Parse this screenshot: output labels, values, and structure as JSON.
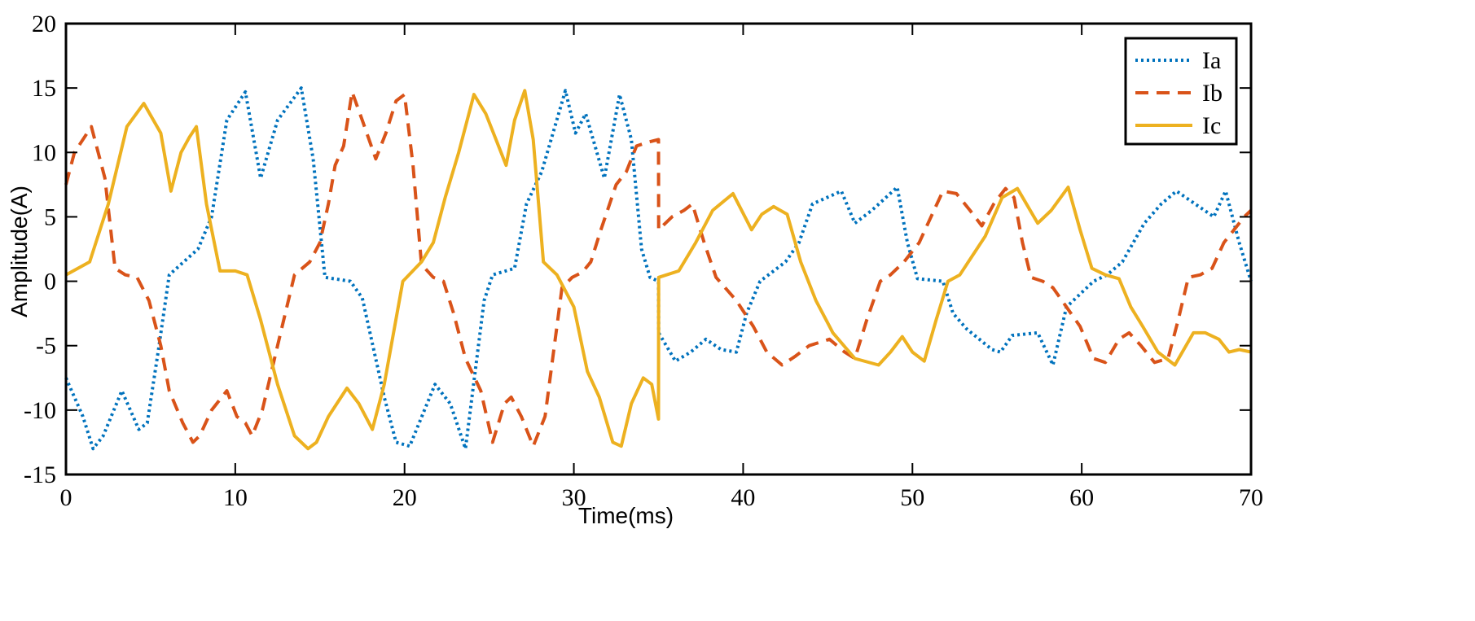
{
  "chart_data": {
    "type": "line",
    "title": "",
    "xlabel": "Time(ms)",
    "ylabel": "Amplitude(A)",
    "xlim": [
      0,
      70
    ],
    "ylim": [
      -15,
      20
    ],
    "xticks": [
      0,
      10,
      20,
      30,
      40,
      50,
      60,
      70
    ],
    "yticks": [
      -15,
      -10,
      -5,
      0,
      5,
      10,
      15,
      20
    ],
    "xtick_labels": [
      "0",
      "10",
      "20",
      "30",
      "40",
      "50",
      "60",
      "70"
    ],
    "ytick_labels": [
      "-15",
      "-10",
      "-5",
      "0",
      "5",
      "10",
      "15",
      "20"
    ],
    "grid": false,
    "legend_position": "top-right",
    "series": [
      {
        "name": "Ia",
        "color": "#0072BD",
        "style": "dotted",
        "x": [
          0,
          1,
          1.6,
          2.2,
          3.3,
          4.3,
          4.8,
          5.5,
          6.1,
          7.8,
          8.6,
          9.5,
          10.6,
          11.5,
          12.5,
          13.9,
          14.6,
          15.3,
          16.8,
          17.5,
          18.8,
          19.5,
          20.3,
          21.8,
          22.7,
          23.6,
          24.7,
          25.2,
          26.5,
          27.2,
          28.1,
          29.5,
          30.1,
          30.7,
          31.8,
          32.7,
          33.4,
          34,
          34.5,
          35,
          35.01,
          36,
          36.9,
          37.8,
          38.7,
          39.6,
          40.2,
          41,
          42.5,
          43.3,
          44.1,
          45.8,
          46.6,
          47.6,
          49.1,
          49.7,
          50.3,
          51.8,
          52.4,
          53.2,
          54.7,
          55.2,
          55.9,
          57.4,
          58.3,
          59.1,
          60.7,
          61.5,
          62.4,
          63.7,
          64.7,
          65.6,
          67.8,
          68.5,
          69.3,
          70
        ],
        "y": [
          -7.5,
          -10.5,
          -13,
          -12,
          -8.5,
          -11.5,
          -11,
          -5,
          0.5,
          2.5,
          5,
          12.5,
          14.7,
          8,
          12.5,
          15,
          9.5,
          0.3,
          0,
          -1.3,
          -9,
          -12.5,
          -12.8,
          -8,
          -9.5,
          -13,
          -1.5,
          0.5,
          1,
          6,
          8.5,
          14.8,
          11.5,
          13,
          8,
          14.5,
          11,
          2.5,
          0.3,
          0,
          -4,
          -6.2,
          -5.5,
          -4.5,
          -5.3,
          -5.5,
          -2.5,
          0,
          1.5,
          3,
          6,
          7,
          4.5,
          5.5,
          7.3,
          3,
          0.2,
          0,
          -2.5,
          -3.7,
          -5.3,
          -5.5,
          -4.2,
          -4,
          -6.5,
          -2,
          0,
          0.5,
          1.5,
          4.5,
          6,
          7,
          5,
          7,
          3,
          0
        ]
      },
      {
        "name": "Ib",
        "color": "#D95319",
        "style": "dashed",
        "x": [
          0,
          0.5,
          1.5,
          2.3,
          2.9,
          3.5,
          4.2,
          4.9,
          5.6,
          6.1,
          6.9,
          7.5,
          7.9,
          8.6,
          9.5,
          10.1,
          10.6,
          11,
          11.6,
          12.5,
          13.5,
          14.4,
          15,
          15.5,
          15.9,
          16.4,
          16.9,
          17.5,
          18.3,
          18.9,
          19.5,
          20,
          20.5,
          21,
          21.7,
          22.3,
          22.9,
          23.6,
          24.5,
          25.2,
          25.9,
          26.3,
          26.9,
          27.6,
          28.3,
          28.9,
          29.3,
          29.9,
          30.5,
          31,
          31.6,
          32.5,
          33.1,
          33.7,
          34.4,
          35,
          35.01,
          35.8,
          36.5,
          37,
          37.7,
          38.4,
          39.6,
          40.6,
          41.4,
          42.3,
          43.1,
          43.9,
          45.1,
          46,
          46.6,
          47.3,
          48.1,
          48.7,
          49.5,
          50.4,
          51.1,
          51.8,
          52.6,
          53.4,
          54.1,
          54.8,
          55.5,
          56,
          56.5,
          57,
          57.7,
          58.3,
          59.1,
          59.9,
          60.7,
          61.4,
          62.2,
          62.8,
          63.5,
          64.3,
          65.1,
          65.7,
          66.3,
          67,
          67.7,
          68.4,
          69,
          69.6,
          70
        ],
        "y": [
          7.5,
          10,
          12,
          8,
          1,
          0.5,
          0.3,
          -1.5,
          -5,
          -8.5,
          -11,
          -12.5,
          -12,
          -10,
          -8.5,
          -10.5,
          -11,
          -12,
          -10,
          -5,
          0.5,
          1.5,
          3,
          6,
          9,
          10.5,
          14.7,
          12.5,
          9.5,
          11.5,
          14,
          14.5,
          9,
          1.3,
          0.3,
          0,
          -2.5,
          -6,
          -8.5,
          -12.5,
          -9.5,
          -9,
          -10.5,
          -12.8,
          -10.5,
          -4.5,
          -0.5,
          0.3,
          0.7,
          1.5,
          4,
          7.5,
          8.5,
          10.5,
          10.8,
          11,
          4,
          5,
          5.5,
          6,
          3,
          0.3,
          -1.5,
          -3.5,
          -5.5,
          -6.5,
          -5.8,
          -5,
          -4.5,
          -5.5,
          -6,
          -3,
          0,
          0.5,
          1.5,
          3,
          5,
          7,
          6.8,
          5.5,
          4.3,
          6,
          7.2,
          6.5,
          3,
          0.3,
          0,
          -0.5,
          -2,
          -3.5,
          -6,
          -6.3,
          -4.5,
          -4,
          -5,
          -6.3,
          -6,
          -3,
          0.3,
          0.5,
          1,
          3,
          4,
          5,
          5.5
        ]
      },
      {
        "name": "Ic",
        "color": "#EDB120",
        "style": "solid",
        "x": [
          0,
          1.4,
          2.5,
          3.6,
          4.6,
          5.6,
          6.2,
          6.8,
          7.3,
          7.7,
          8.3,
          9.1,
          10,
          10.7,
          11.5,
          12.5,
          13.5,
          14.3,
          14.8,
          15.5,
          16,
          16.6,
          17.3,
          18.1,
          18.8,
          19.9,
          21,
          21.7,
          22.4,
          23.2,
          24.1,
          24.8,
          25.4,
          26,
          26.5,
          27.1,
          27.6,
          28.2,
          29,
          30,
          30.8,
          31.5,
          32.3,
          32.8,
          33.4,
          34.1,
          34.6,
          35,
          35.01,
          36.2,
          37.2,
          38.2,
          39.4,
          40.5,
          41.1,
          41.8,
          42.6,
          43.4,
          44.3,
          45.3,
          46.6,
          48,
          48.7,
          49.4,
          50,
          50.7,
          51.4,
          52.1,
          52.8,
          53.3,
          54.3,
          55.3,
          56.2,
          57.4,
          58.2,
          59.2,
          59.9,
          60.6,
          61.4,
          62.2,
          62.9,
          63.6,
          64.5,
          65.5,
          66.6,
          67.3,
          68.1,
          68.7,
          69.3,
          70
        ],
        "y": [
          0.5,
          1.5,
          6,
          12,
          13.8,
          11.5,
          7,
          10,
          11.2,
          12,
          6,
          0.8,
          0.8,
          0.5,
          -3,
          -8,
          -12,
          -13,
          -12.5,
          -10.5,
          -9.5,
          -8.3,
          -9.5,
          -11.5,
          -8,
          0,
          1.5,
          3,
          6.5,
          10,
          14.5,
          13,
          11,
          9,
          12.5,
          14.8,
          11,
          1.5,
          0.5,
          -2,
          -7,
          -9,
          -12.5,
          -12.8,
          -9.5,
          -7.5,
          -8,
          -10.7,
          0.3,
          0.8,
          3,
          5.5,
          6.8,
          4,
          5.2,
          5.8,
          5.2,
          1.5,
          -1.5,
          -4,
          -6,
          -6.5,
          -5.5,
          -4.3,
          -5.5,
          -6.2,
          -3,
          0,
          0.5,
          1.5,
          3.5,
          6.5,
          7.2,
          4.5,
          5.5,
          7.3,
          4,
          1,
          0.5,
          0.2,
          -2,
          -3.5,
          -5.5,
          -6.5,
          -4,
          -4,
          -4.5,
          -5.5,
          -5.3,
          -5.5
        ]
      }
    ]
  }
}
